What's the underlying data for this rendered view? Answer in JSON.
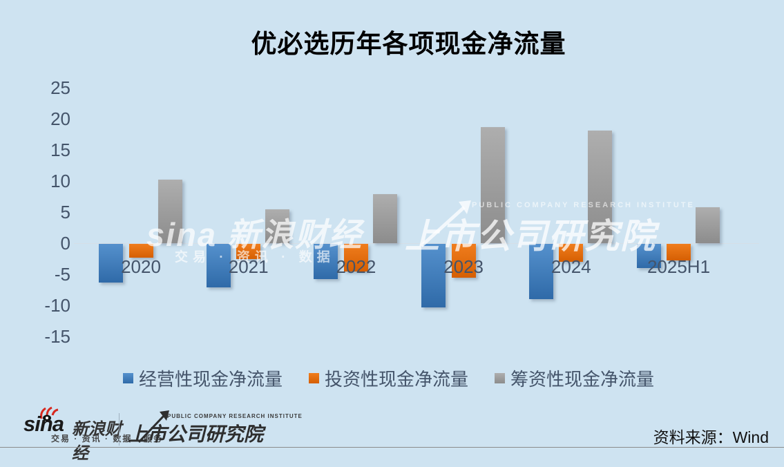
{
  "title": "优必选历年各项现金净流量",
  "chart_data": {
    "type": "bar",
    "categories": [
      "2020",
      "2021",
      "2022",
      "2023",
      "2024",
      "2025H1"
    ],
    "series": [
      {
        "name": "经营性现金净流量",
        "color": "#3b7cc0",
        "color_light": "#5591cd",
        "color_dark": "#2f6aa8",
        "values": [
          -6.2,
          -7.0,
          -5.7,
          -10.2,
          -8.9,
          -3.9
        ]
      },
      {
        "name": "投资性现金净流量",
        "color": "#e36c0a",
        "color_light": "#f07d1d",
        "color_dark": "#d55f03",
        "values": [
          -2.2,
          -2.4,
          -4.4,
          -5.4,
          -2.9,
          -2.7
        ]
      },
      {
        "name": "筹资性现金净流量",
        "color": "#9c9c9c",
        "color_light": "#aeaeae",
        "color_dark": "#8c8c8c",
        "values": [
          10.2,
          5.5,
          7.9,
          18.7,
          18.1,
          5.8
        ]
      }
    ],
    "yticks": [
      25,
      20,
      15,
      10,
      5,
      0,
      -5,
      -10,
      -15
    ],
    "ylim": [
      -15,
      25
    ],
    "xlabel": "",
    "ylabel": "",
    "grid": false,
    "legend_position": "bottom"
  },
  "watermarks": {
    "left_main": "sina 新浪财经",
    "left_sub": "交易 · 资讯 · 数据",
    "right_en": "PUBLIC COMPANY RESEARCH INSTITUTE",
    "right_cn": "上市公司研究院"
  },
  "footer": {
    "sina_logo": "sina",
    "sina_finance": "新浪财经",
    "sina_tagline": "交易 · 资讯 · 数据 · 服务",
    "pcri_en": "PUBLIC COMPANY RESEARCH INSTITUTE",
    "pcri_cn": "上市公司研究院",
    "source": "资料来源：Wind"
  }
}
